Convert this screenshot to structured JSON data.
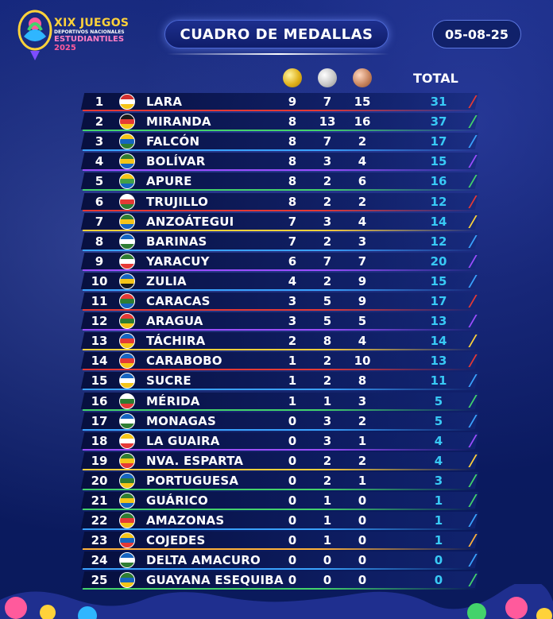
{
  "logo": {
    "line1": "XIX JUEGOS",
    "line2": "DEPORTIVOS NACIONALES",
    "line3": "ESTUDIANTILES",
    "line4": "2025"
  },
  "title": "CUADRO DE MEDALLAS",
  "date": "05-08-25",
  "headers": {
    "total": "TOTAL",
    "gold_icon": "gold-medal-icon",
    "silver_icon": "silver-medal-icon",
    "bronze_icon": "bronze-medal-icon"
  },
  "rows": [
    {
      "rank": "1",
      "name": "LARA",
      "gold": "9",
      "silver": "7",
      "bronze": "15",
      "total": "31",
      "accent": "#e53935"
    },
    {
      "rank": "2",
      "name": "MIRANDA",
      "gold": "8",
      "silver": "13",
      "bronze": "16",
      "total": "37",
      "accent": "#43d36b"
    },
    {
      "rank": "3",
      "name": "FALCÓN",
      "gold": "8",
      "silver": "7",
      "bronze": "2",
      "total": "17",
      "accent": "#3aa3ff"
    },
    {
      "rank": "4",
      "name": "BOLÍVAR",
      "gold": "8",
      "silver": "3",
      "bronze": "4",
      "total": "15",
      "accent": "#9c4dff"
    },
    {
      "rank": "5",
      "name": "APURE",
      "gold": "8",
      "silver": "2",
      "bronze": "6",
      "total": "16",
      "accent": "#43d36b"
    },
    {
      "rank": "6",
      "name": "TRUJILLO",
      "gold": "8",
      "silver": "2",
      "bronze": "2",
      "total": "12",
      "accent": "#e53935"
    },
    {
      "rank": "7",
      "name": "ANZOÁTEGUI",
      "gold": "7",
      "silver": "3",
      "bronze": "4",
      "total": "14",
      "accent": "#ffd23a"
    },
    {
      "rank": "8",
      "name": "BARINAS",
      "gold": "7",
      "silver": "2",
      "bronze": "3",
      "total": "12",
      "accent": "#3aa3ff"
    },
    {
      "rank": "9",
      "name": "YARACUY",
      "gold": "6",
      "silver": "7",
      "bronze": "7",
      "total": "20",
      "accent": "#9c4dff"
    },
    {
      "rank": "10",
      "name": "ZULIA",
      "gold": "4",
      "silver": "2",
      "bronze": "9",
      "total": "15",
      "accent": "#3aa3ff"
    },
    {
      "rank": "11",
      "name": "CARACAS",
      "gold": "3",
      "silver": "5",
      "bronze": "9",
      "total": "17",
      "accent": "#e53935"
    },
    {
      "rank": "12",
      "name": "ARAGUA",
      "gold": "3",
      "silver": "5",
      "bronze": "5",
      "total": "13",
      "accent": "#9c4dff"
    },
    {
      "rank": "13",
      "name": "TÁCHIRA",
      "gold": "2",
      "silver": "8",
      "bronze": "4",
      "total": "14",
      "accent": "#ffd23a"
    },
    {
      "rank": "14",
      "name": "CARABOBO",
      "gold": "1",
      "silver": "2",
      "bronze": "10",
      "total": "13",
      "accent": "#e53935"
    },
    {
      "rank": "15",
      "name": "SUCRE",
      "gold": "1",
      "silver": "2",
      "bronze": "8",
      "total": "11",
      "accent": "#3aa3ff"
    },
    {
      "rank": "16",
      "name": "MÉRIDA",
      "gold": "1",
      "silver": "1",
      "bronze": "3",
      "total": "5",
      "accent": "#43d36b"
    },
    {
      "rank": "17",
      "name": "MONAGAS",
      "gold": "0",
      "silver": "3",
      "bronze": "2",
      "total": "5",
      "accent": "#3aa3ff"
    },
    {
      "rank": "18",
      "name": "LA GUAIRA",
      "gold": "0",
      "silver": "3",
      "bronze": "1",
      "total": "4",
      "accent": "#9c4dff"
    },
    {
      "rank": "19",
      "name": "NVA. ESPARTA",
      "gold": "0",
      "silver": "2",
      "bronze": "2",
      "total": "4",
      "accent": "#ffd23a"
    },
    {
      "rank": "20",
      "name": "PORTUGUESA",
      "gold": "0",
      "silver": "2",
      "bronze": "1",
      "total": "3",
      "accent": "#43d36b"
    },
    {
      "rank": "21",
      "name": "GUÁRICO",
      "gold": "0",
      "silver": "1",
      "bronze": "0",
      "total": "1",
      "accent": "#43d36b"
    },
    {
      "rank": "22",
      "name": "AMAZONAS",
      "gold": "0",
      "silver": "1",
      "bronze": "0",
      "total": "1",
      "accent": "#3aa3ff"
    },
    {
      "rank": "23",
      "name": "COJEDES",
      "gold": "0",
      "silver": "1",
      "bronze": "0",
      "total": "1",
      "accent": "#ffb23a"
    },
    {
      "rank": "24",
      "name": "DELTA AMACURO",
      "gold": "0",
      "silver": "0",
      "bronze": "0",
      "total": "0",
      "accent": "#3aa3ff"
    },
    {
      "rank": "25",
      "name": "GUAYANA ESEQUIBA",
      "gold": "0",
      "silver": "0",
      "bronze": "0",
      "total": "0",
      "accent": "#43d36b"
    }
  ],
  "flags": [
    [
      "#d32f2f",
      "#ffffff",
      "#f5c518"
    ],
    [
      "#1a1a1a",
      "#e53935",
      "#f5c518"
    ],
    [
      "#f5c518",
      "#1565c0",
      "#2e7d32"
    ],
    [
      "#2e7d32",
      "#f5c518",
      "#1565c0"
    ],
    [
      "#f5c518",
      "#43a047",
      "#1565c0"
    ],
    [
      "#ffffff",
      "#e53935",
      "#2e7d32"
    ],
    [
      "#2e7d32",
      "#f5c518",
      "#1565c0"
    ],
    [
      "#1565c0",
      "#ffffff",
      "#2e7d32"
    ],
    [
      "#2e7d32",
      "#ffffff",
      "#e53935"
    ],
    [
      "#1565c0",
      "#f5c518",
      "#1a1a1a"
    ],
    [
      "#e53935",
      "#2e7d32",
      "#1565c0"
    ],
    [
      "#e53935",
      "#2e7d32",
      "#f5c518"
    ],
    [
      "#1565c0",
      "#e53935",
      "#f5c518"
    ],
    [
      "#1565c0",
      "#e53935",
      "#f5c518"
    ],
    [
      "#1565c0",
      "#ffffff",
      "#f5c518"
    ],
    [
      "#ffffff",
      "#2e7d32",
      "#e53935"
    ],
    [
      "#1565c0",
      "#ffffff",
      "#2e7d32"
    ],
    [
      "#f5c518",
      "#ffffff",
      "#e53935"
    ],
    [
      "#2e7d32",
      "#f5c518",
      "#e53935"
    ],
    [
      "#1565c0",
      "#2e7d32",
      "#f5c518"
    ],
    [
      "#2e7d32",
      "#f5c518",
      "#1565c0"
    ],
    [
      "#2e7d32",
      "#e53935",
      "#f5c518"
    ],
    [
      "#f5c518",
      "#1565c0",
      "#e53935"
    ],
    [
      "#1565c0",
      "#ffffff",
      "#2e7d32"
    ],
    [
      "#2e7d32",
      "#1565c0",
      "#f5c518"
    ]
  ]
}
